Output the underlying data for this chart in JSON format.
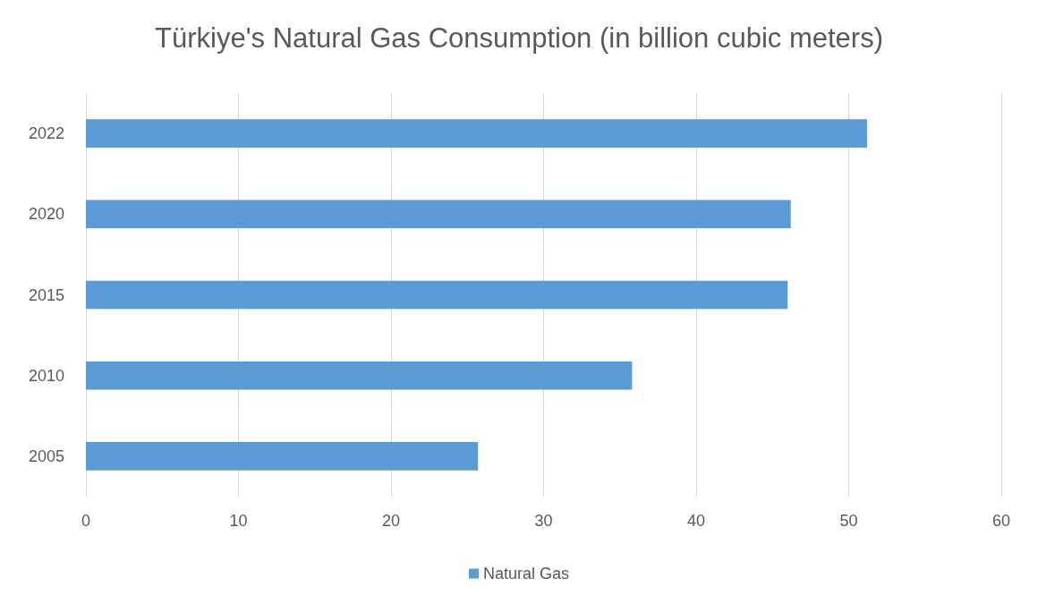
{
  "chart_data": {
    "type": "bar",
    "orientation": "horizontal",
    "title": "Türkiye's Natural Gas Consumption (in billion cubic meters)",
    "categories": [
      "2022",
      "2020",
      "2015",
      "2010",
      "2005"
    ],
    "series": [
      {
        "name": "Natural Gas",
        "color": "#5b9bd5",
        "values": [
          51.2,
          46.2,
          46.0,
          35.8,
          25.7
        ]
      }
    ],
    "xlim": [
      0,
      60
    ],
    "xticks": [
      0,
      10,
      20,
      30,
      40,
      50,
      60
    ],
    "grid": "x",
    "legend": "bottom"
  }
}
